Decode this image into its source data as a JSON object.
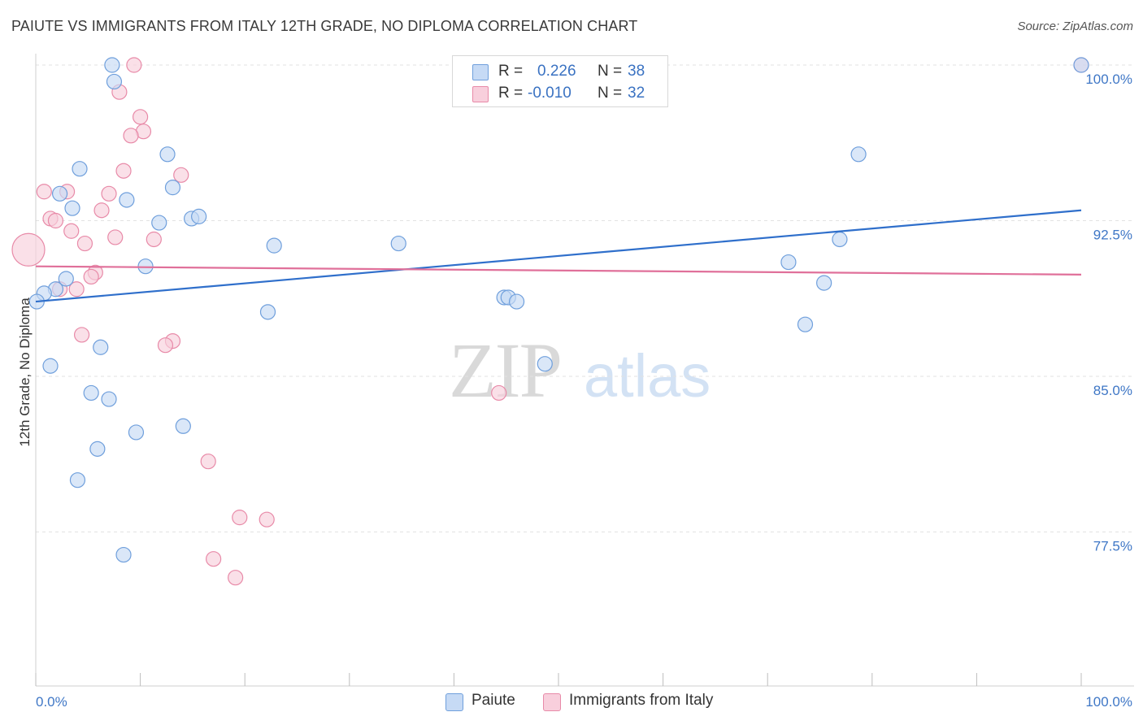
{
  "title": "PAIUTE VS IMMIGRANTS FROM ITALY 12TH GRADE, NO DIPLOMA CORRELATION CHART",
  "source": "Source: ZipAtlas.com",
  "watermark": {
    "zip": "ZIP",
    "atlas": "atlas"
  },
  "legend": {
    "rows": [
      {
        "r_label": "R =",
        "r_value": "0.226",
        "n_label": "N =",
        "n_value": "38"
      },
      {
        "r_label": "R =",
        "r_value": "-0.010",
        "n_label": "N =",
        "n_value": "32"
      }
    ]
  },
  "bottom_legend": {
    "paiute": "Paiute",
    "italy": "Immigrants from Italy"
  },
  "colors": {
    "paiute_fill": "#c6daf5",
    "paiute_stroke": "#6f9fdc",
    "paiute_line": "#2f6fcb",
    "italy_fill": "#f8cfdc",
    "italy_stroke": "#e88aa8",
    "italy_line": "#e0709a",
    "tick_label": "#3f77c6",
    "grid": "#e2e2e2"
  },
  "chart_data": {
    "type": "scatter",
    "title": "PAIUTE VS IMMIGRANTS FROM ITALY 12TH GRADE, NO DIPLOMA CORRELATION CHART",
    "xlabel": "",
    "ylabel": "12th Grade, No Diploma",
    "xlim": [
      0,
      100
    ],
    "ylim": [
      70.2,
      100.7
    ],
    "x_tick_labels": [
      "0.0%",
      "100.0%"
    ],
    "y_ticks": [
      {
        "value": 100.0,
        "label": "100.0%"
      },
      {
        "value": 92.5,
        "label": "92.5%"
      },
      {
        "value": 85.0,
        "label": "85.0%"
      },
      {
        "value": 77.5,
        "label": "77.5%"
      }
    ],
    "grid": "horizontal dashed",
    "series": [
      {
        "name": "Paiute",
        "trend": {
          "x": [
            0,
            100
          ],
          "y": [
            88.6,
            93.0
          ]
        },
        "points": [
          {
            "x": 7.3,
            "y": 100.0
          },
          {
            "x": 7.5,
            "y": 99.2
          },
          {
            "x": 12.6,
            "y": 95.7
          },
          {
            "x": 4.2,
            "y": 95.0
          },
          {
            "x": 13.1,
            "y": 94.1
          },
          {
            "x": 2.3,
            "y": 93.8
          },
          {
            "x": 8.7,
            "y": 93.5
          },
          {
            "x": 3.5,
            "y": 93.1
          },
          {
            "x": 14.9,
            "y": 92.6
          },
          {
            "x": 15.6,
            "y": 92.7
          },
          {
            "x": 11.8,
            "y": 92.4
          },
          {
            "x": 22.8,
            "y": 91.3
          },
          {
            "x": 34.7,
            "y": 91.4
          },
          {
            "x": 10.5,
            "y": 90.3
          },
          {
            "x": 2.9,
            "y": 89.7
          },
          {
            "x": 1.9,
            "y": 89.2
          },
          {
            "x": 0.8,
            "y": 89.0
          },
          {
            "x": 0.1,
            "y": 88.6
          },
          {
            "x": 22.2,
            "y": 88.1
          },
          {
            "x": 44.8,
            "y": 88.8
          },
          {
            "x": 45.2,
            "y": 88.8
          },
          {
            "x": 46.0,
            "y": 88.6
          },
          {
            "x": 6.2,
            "y": 86.4
          },
          {
            "x": 1.4,
            "y": 85.5
          },
          {
            "x": 48.7,
            "y": 85.6
          },
          {
            "x": 5.3,
            "y": 84.2
          },
          {
            "x": 7.0,
            "y": 83.9
          },
          {
            "x": 14.1,
            "y": 82.6
          },
          {
            "x": 9.6,
            "y": 82.3
          },
          {
            "x": 5.9,
            "y": 81.5
          },
          {
            "x": 4.0,
            "y": 80.0
          },
          {
            "x": 8.4,
            "y": 76.4
          },
          {
            "x": 78.7,
            "y": 95.7
          },
          {
            "x": 76.9,
            "y": 91.6
          },
          {
            "x": 72.0,
            "y": 90.5
          },
          {
            "x": 75.4,
            "y": 89.5
          },
          {
            "x": 73.6,
            "y": 87.5
          },
          {
            "x": 100.0,
            "y": 100.0
          }
        ]
      },
      {
        "name": "Immigrants from Italy",
        "trend": {
          "x": [
            0,
            100
          ],
          "y": [
            90.3,
            89.9
          ]
        },
        "points": [
          {
            "x": 9.4,
            "y": 100.0
          },
          {
            "x": 8.0,
            "y": 98.7
          },
          {
            "x": 10.0,
            "y": 97.5
          },
          {
            "x": 10.3,
            "y": 96.8
          },
          {
            "x": 9.1,
            "y": 96.6
          },
          {
            "x": 8.4,
            "y": 94.9
          },
          {
            "x": 13.9,
            "y": 94.7
          },
          {
            "x": 0.8,
            "y": 93.9
          },
          {
            "x": 3.0,
            "y": 93.9
          },
          {
            "x": 7.0,
            "y": 93.8
          },
          {
            "x": 6.3,
            "y": 93.0
          },
          {
            "x": 1.4,
            "y": 92.6
          },
          {
            "x": 1.9,
            "y": 92.5
          },
          {
            "x": 3.4,
            "y": 92.0
          },
          {
            "x": 7.6,
            "y": 91.7
          },
          {
            "x": 11.3,
            "y": 91.6
          },
          {
            "x": 4.7,
            "y": 91.4
          },
          {
            "x": -0.7,
            "y": 91.1
          },
          {
            "x": 5.7,
            "y": 90.0
          },
          {
            "x": 5.3,
            "y": 89.8
          },
          {
            "x": 2.3,
            "y": 89.2
          },
          {
            "x": 3.9,
            "y": 89.2
          },
          {
            "x": 4.4,
            "y": 87.0
          },
          {
            "x": 13.1,
            "y": 86.7
          },
          {
            "x": 12.4,
            "y": 86.5
          },
          {
            "x": 44.3,
            "y": 84.2
          },
          {
            "x": 16.5,
            "y": 80.9
          },
          {
            "x": 19.5,
            "y": 78.2
          },
          {
            "x": 22.1,
            "y": 78.1
          },
          {
            "x": 17.0,
            "y": 76.2
          },
          {
            "x": 19.1,
            "y": 75.3
          },
          {
            "x": 100.0,
            "y": 100.0
          }
        ]
      }
    ]
  }
}
